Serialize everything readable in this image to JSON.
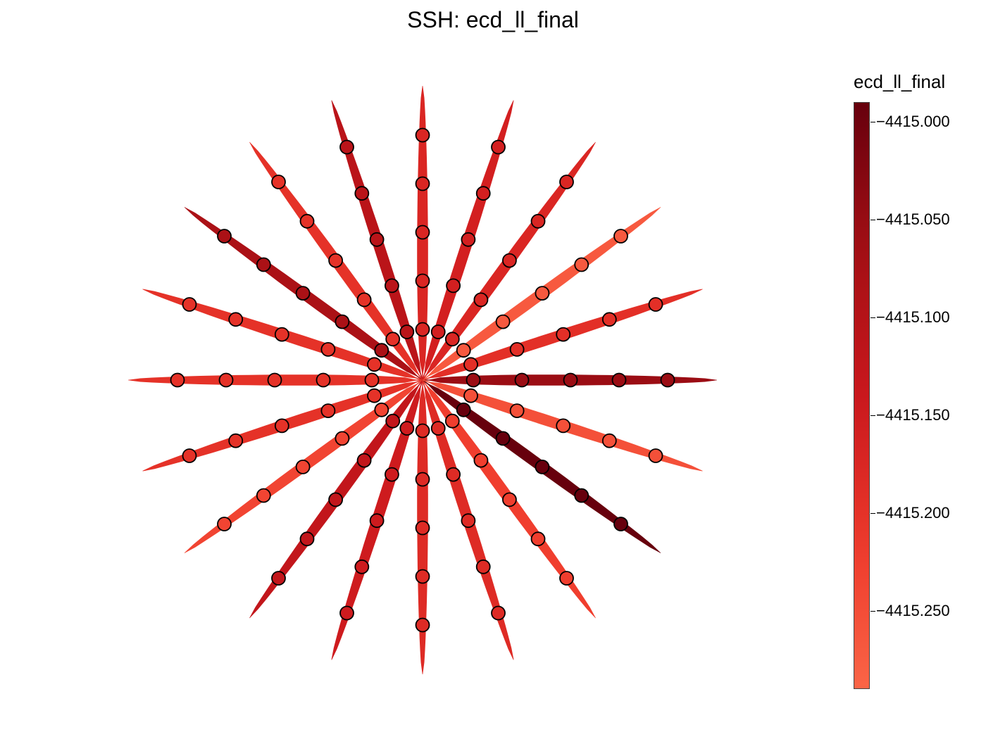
{
  "chart_data": {
    "type": "radial-scatter",
    "title": "SSH: ecd_ll_final",
    "colorbar": {
      "label": "ecd_ll_final",
      "min": -4415.29,
      "max": -4414.99,
      "ticks": [
        -4415.0,
        -4415.05,
        -4415.1,
        -4415.15,
        -4415.2,
        -4415.25
      ],
      "tick_labels": [
        "−4415.000",
        "−4415.050",
        "−4415.100",
        "−4415.150",
        "−4415.200",
        "−4415.250"
      ],
      "colormap": "Reds",
      "colors": [
        "#fcbba1",
        "#fc9272",
        "#fb6a4a",
        "#ef3b2c",
        "#cb181d",
        "#a50f15",
        "#67000d"
      ]
    },
    "markers_per_spoke": 5,
    "spokes": [
      {
        "angle_deg": 0,
        "value": -4415.055
      },
      {
        "angle_deg": 18,
        "value": -4415.195
      },
      {
        "angle_deg": 36,
        "value": -4415.27
      },
      {
        "angle_deg": 54,
        "value": -4415.175
      },
      {
        "angle_deg": 72,
        "value": -4415.16
      },
      {
        "angle_deg": 90,
        "value": -4415.175
      },
      {
        "angle_deg": 108,
        "value": -4415.11
      },
      {
        "angle_deg": 126,
        "value": -4415.2
      },
      {
        "angle_deg": 144,
        "value": -4415.08
      },
      {
        "angle_deg": 162,
        "value": -4415.2
      },
      {
        "angle_deg": 180,
        "value": -4415.2
      },
      {
        "angle_deg": 198,
        "value": -4415.2
      },
      {
        "angle_deg": 216,
        "value": -4415.235
      },
      {
        "angle_deg": 234,
        "value": -4415.125
      },
      {
        "angle_deg": 252,
        "value": -4415.15
      },
      {
        "angle_deg": 270,
        "value": -4415.185
      },
      {
        "angle_deg": 288,
        "value": -4415.185
      },
      {
        "angle_deg": 306,
        "value": -4415.225
      },
      {
        "angle_deg": 324,
        "value": -4414.99
      },
      {
        "angle_deg": 342,
        "value": -4415.255
      }
    ]
  }
}
